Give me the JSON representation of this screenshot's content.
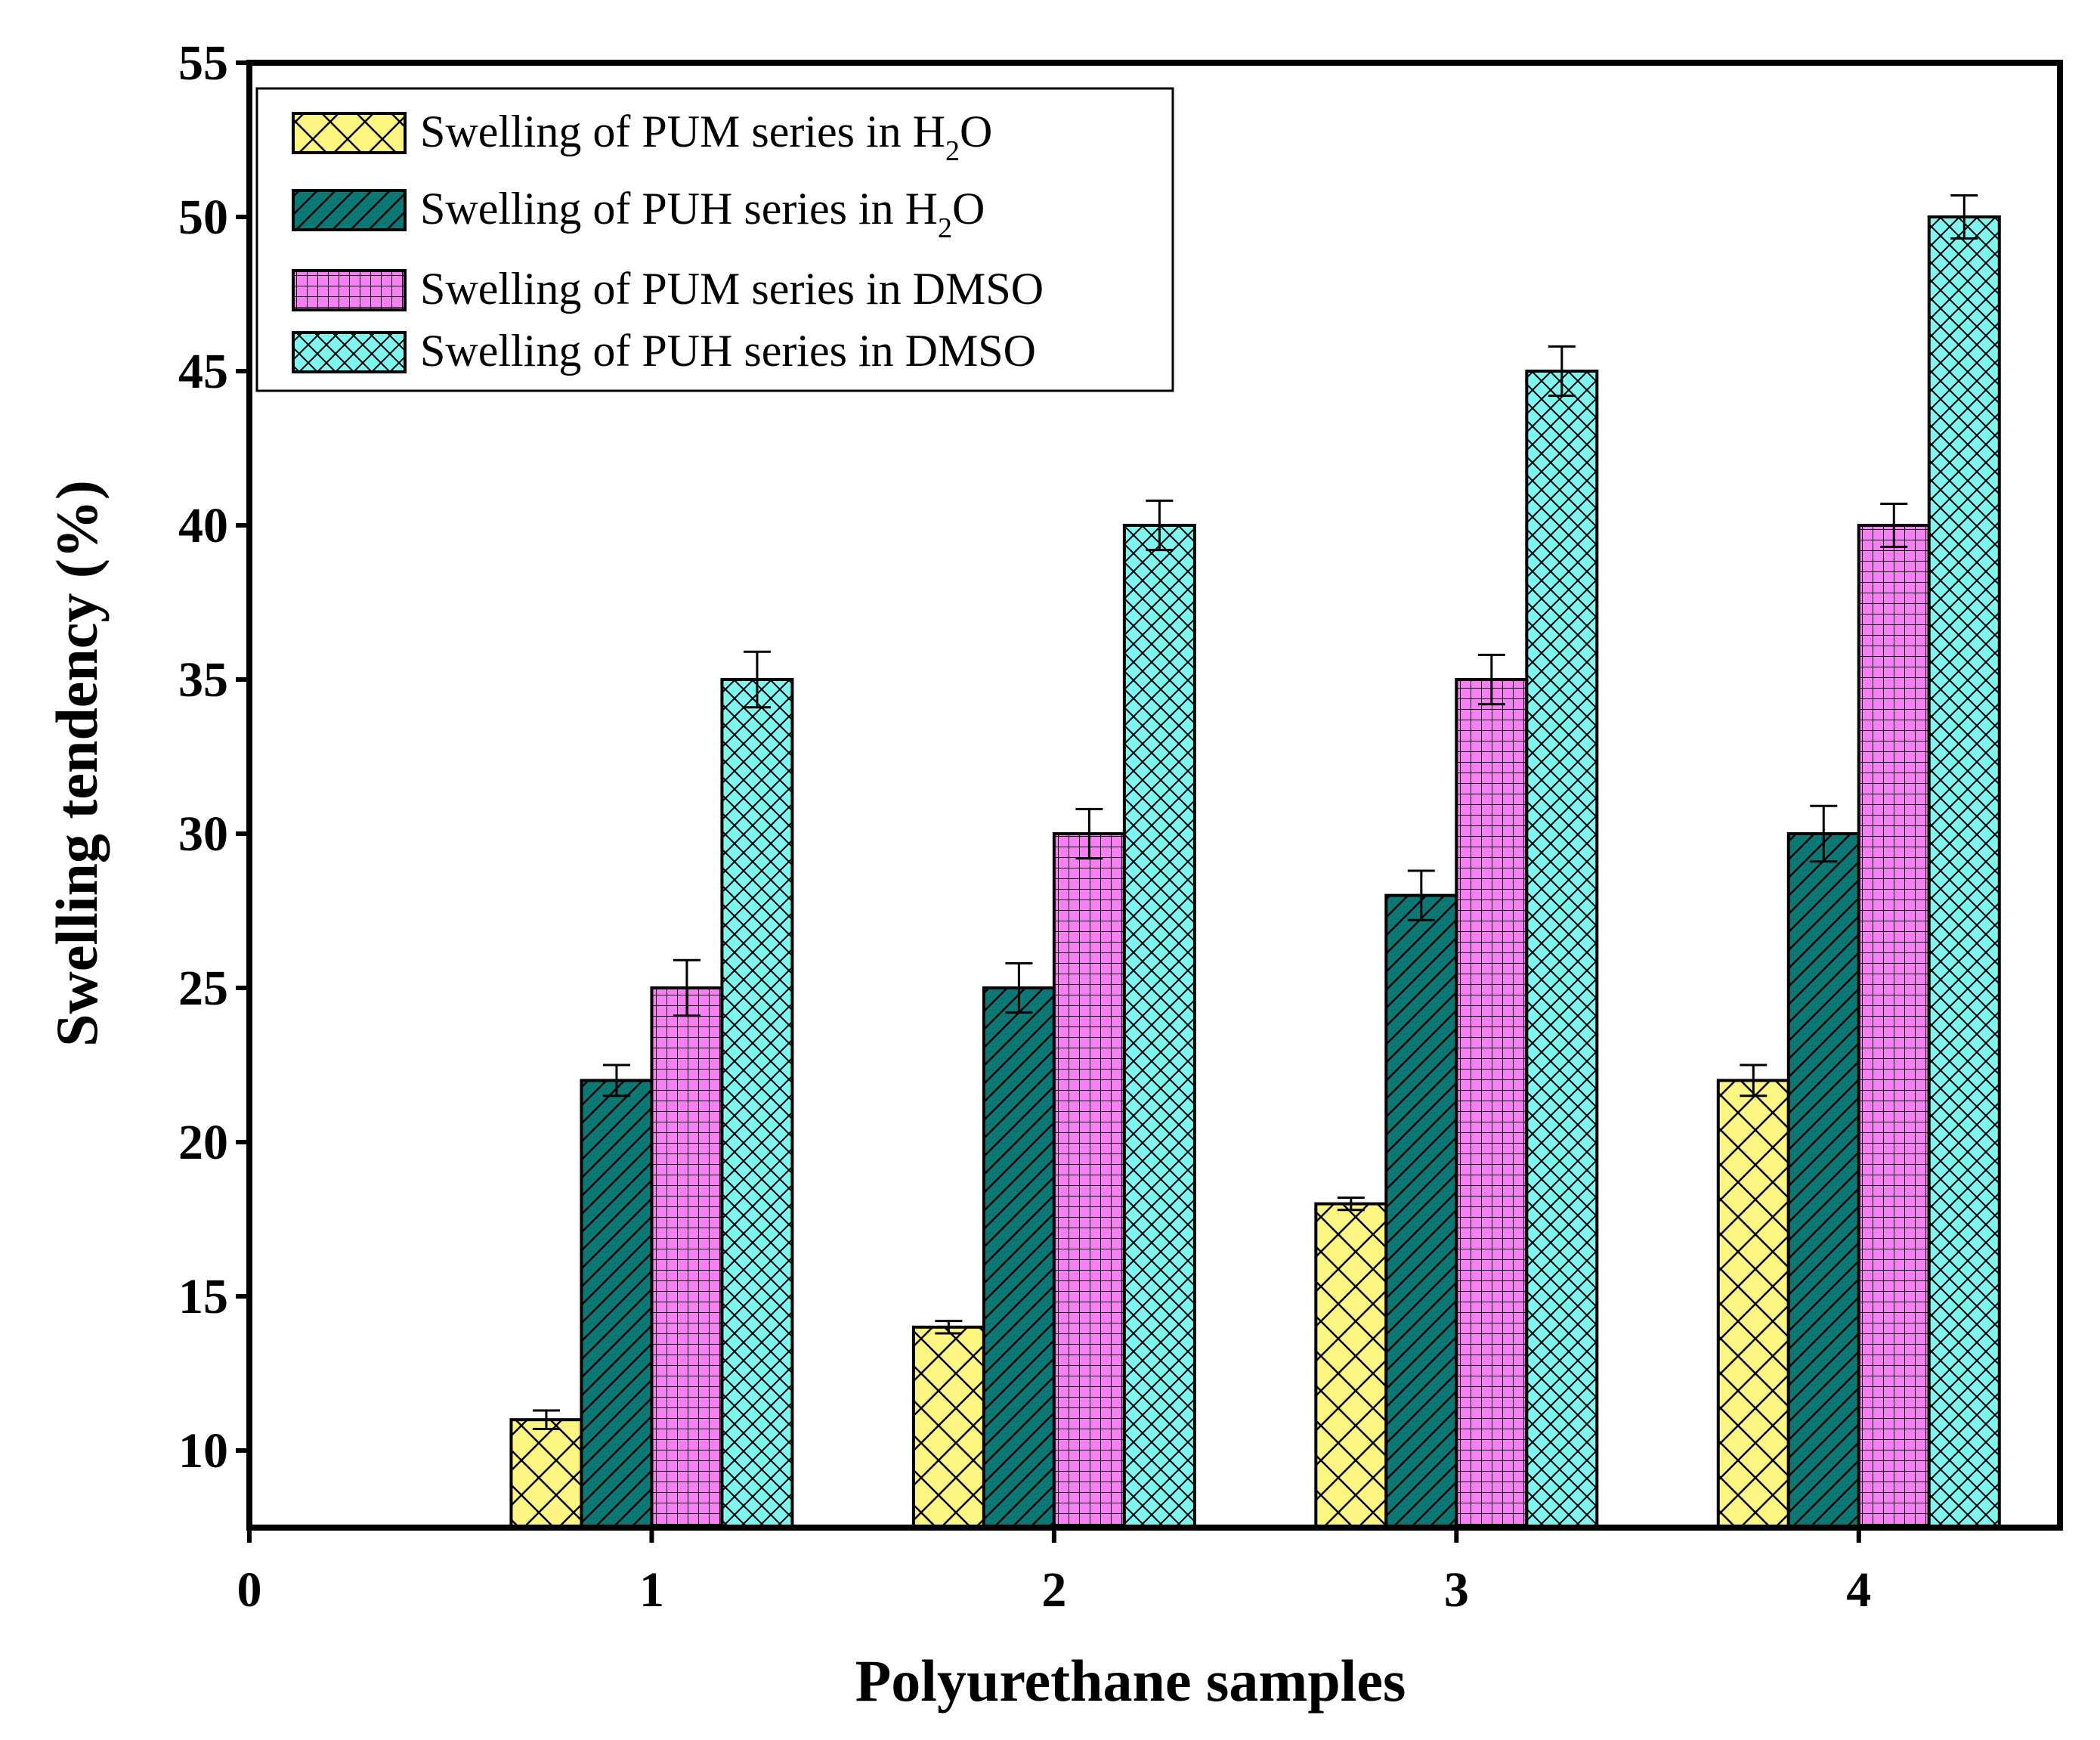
{
  "chart_data": {
    "type": "bar",
    "title": "",
    "xlabel": "Polyurethane samples",
    "ylabel": "Swelling tendency (%)",
    "xlim": [
      0,
      4.5
    ],
    "ylim": [
      7.5,
      55
    ],
    "x_ticks": [
      "0",
      "1",
      "2",
      "3",
      "4"
    ],
    "y_ticks": [
      "10",
      "15",
      "20",
      "25",
      "30",
      "35",
      "40",
      "45",
      "50",
      "55"
    ],
    "categories": [
      "1",
      "2",
      "3",
      "4"
    ],
    "legend_position": "top-left",
    "series": [
      {
        "name": "Swelling of PUM series in H2O",
        "legend_prefix": "Swelling of PUM series in H",
        "legend_sub": "2",
        "legend_suffix": "O",
        "color": "#fdf582",
        "pattern": "crosshatch-large",
        "values": [
          11,
          14,
          18,
          22
        ],
        "errors": [
          0.3,
          0.2,
          0.2,
          0.5
        ]
      },
      {
        "name": "Swelling of PUH series in H2O",
        "legend_prefix": "Swelling of PUH series in H",
        "legend_sub": "2",
        "legend_suffix": "O",
        "color": "#0b7875",
        "pattern": "diagonal",
        "values": [
          22,
          25,
          28,
          30
        ],
        "errors": [
          0.5,
          0.8,
          0.8,
          0.9
        ]
      },
      {
        "name": "Swelling of PUM series in DMSO",
        "legend_prefix": "Swelling of PUM series in DMSO",
        "legend_sub": "",
        "legend_suffix": "",
        "color": "#f77ef3",
        "pattern": "grid",
        "values": [
          25,
          30,
          35,
          40
        ],
        "errors": [
          0.9,
          0.8,
          0.8,
          0.7
        ]
      },
      {
        "name": "Swelling of PUH series in DMSO",
        "legend_prefix": "Swelling of PUH series in DMSO",
        "legend_sub": "",
        "legend_suffix": "",
        "color": "#7ff7f0",
        "pattern": "crosshatch-small",
        "values": [
          35,
          40,
          45,
          50
        ],
        "errors": [
          0.9,
          0.8,
          0.8,
          0.7
        ]
      }
    ]
  }
}
